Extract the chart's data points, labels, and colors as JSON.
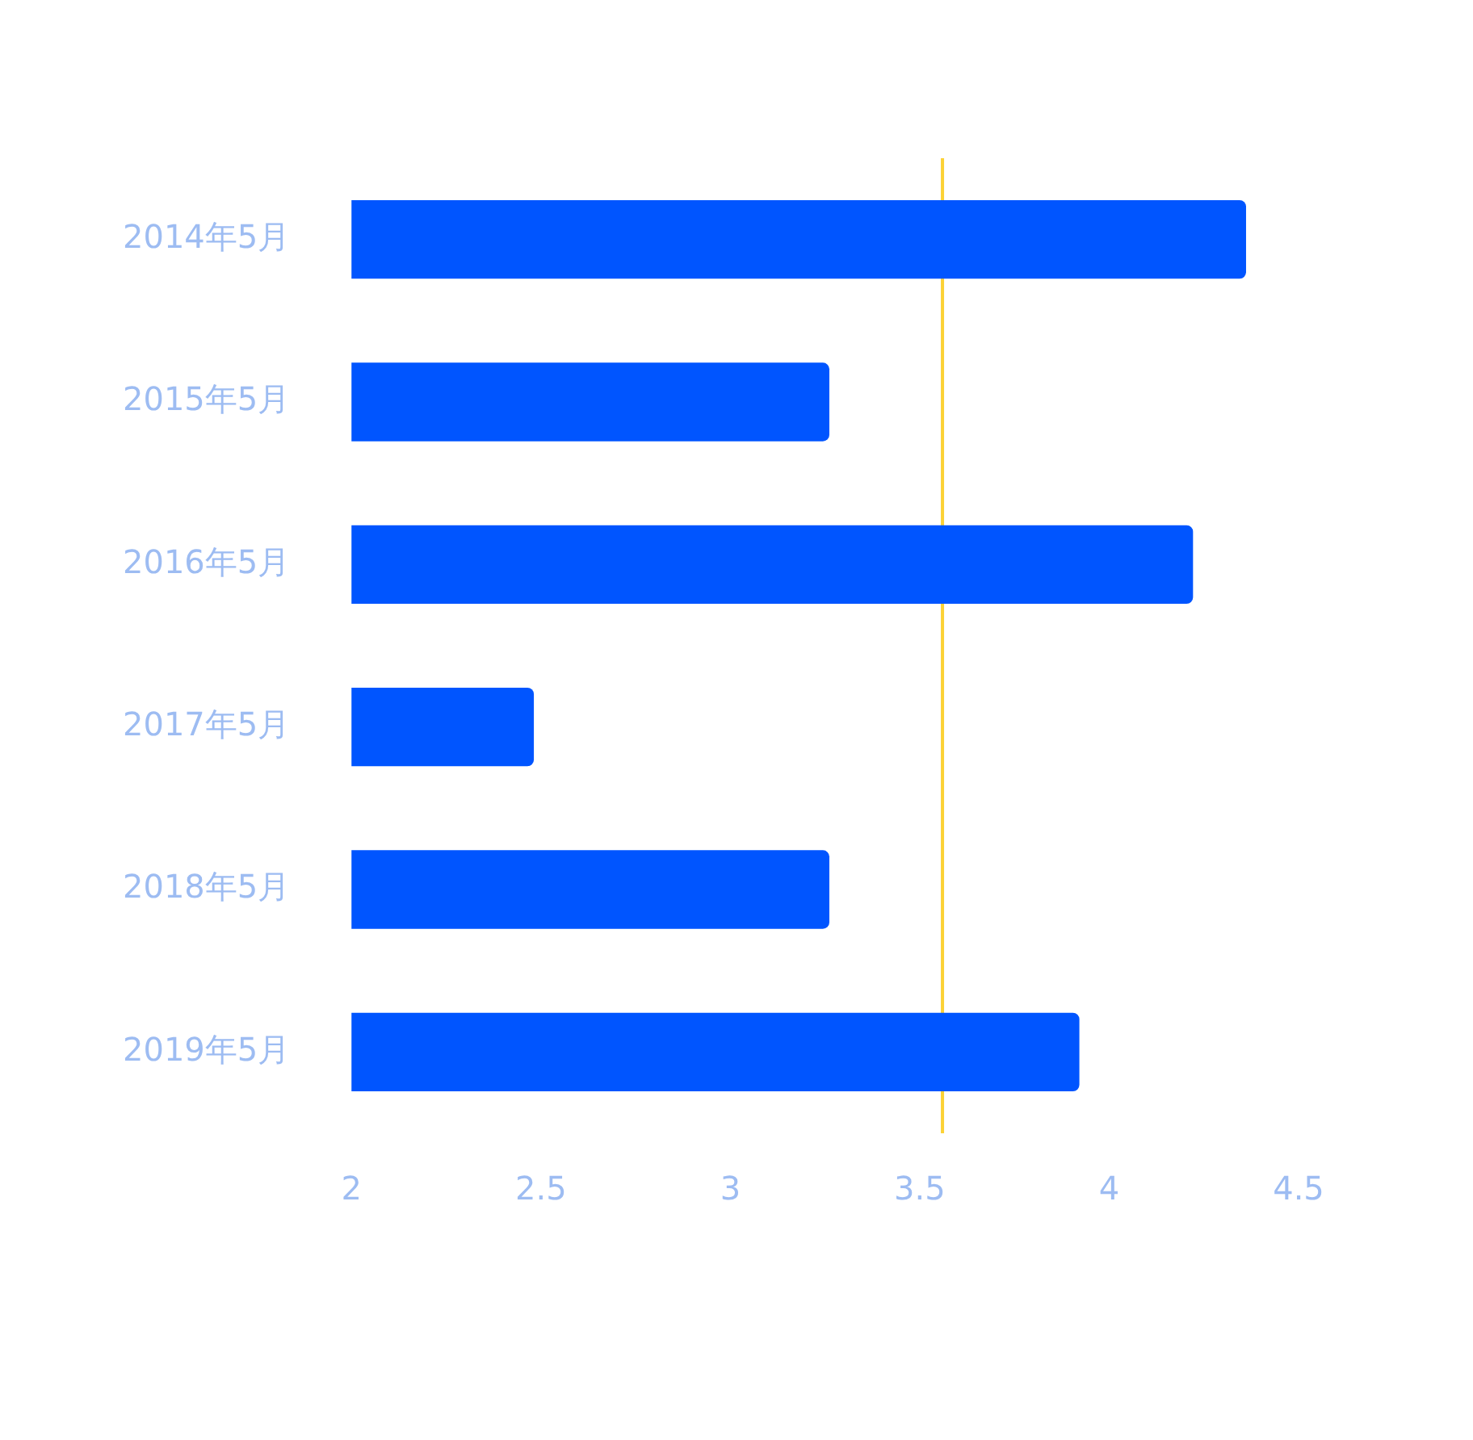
{
  "chart_data": {
    "type": "bar",
    "orientation": "horizontal",
    "categories": [
      "2014年5月",
      "2015年5月",
      "2016年5月",
      "2017年5月",
      "2018年5月",
      "2019年5月"
    ],
    "values": [
      4.36,
      3.26,
      4.22,
      2.48,
      3.26,
      3.92
    ],
    "color": "#0055ff",
    "xlim": [
      2,
      4.5
    ],
    "xticks": [
      2,
      2.5,
      3,
      3.5,
      4,
      4.5
    ],
    "ref_lines": [
      {
        "axis": "x",
        "value": 3.56,
        "color": "#fcd235"
      }
    ],
    "grid": false,
    "legend": false
  }
}
